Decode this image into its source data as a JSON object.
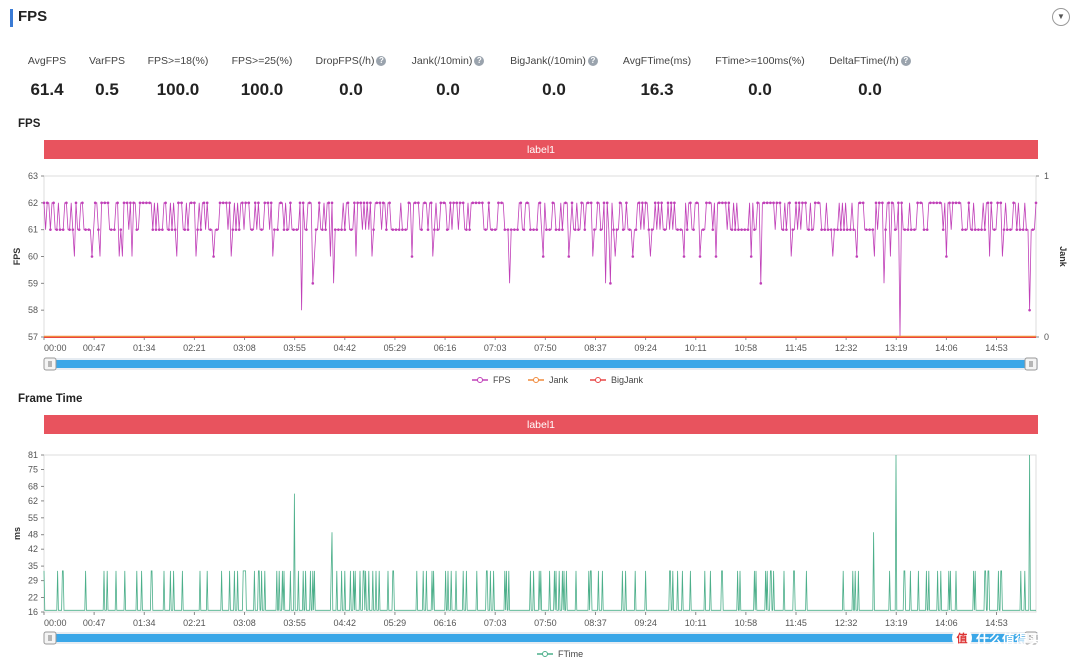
{
  "page": {
    "title": "FPS"
  },
  "stats": [
    {
      "label": "AvgFPS",
      "value": "61.4",
      "help": false
    },
    {
      "label": "VarFPS",
      "value": "0.5",
      "help": false
    },
    {
      "label": "FPS>=18(%)",
      "value": "100.0",
      "help": false
    },
    {
      "label": "FPS>=25(%)",
      "value": "100.0",
      "help": false
    },
    {
      "label": "DropFPS(/h)",
      "value": "0.0",
      "help": true
    },
    {
      "label": "Jank(/10min)",
      "value": "0.0",
      "help": true
    },
    {
      "label": "BigJank(/10min)",
      "value": "0.0",
      "help": true
    },
    {
      "label": "AvgFTime(ms)",
      "value": "16.3",
      "help": false
    },
    {
      "label": "FTime>=100ms(%)",
      "value": "0.0",
      "help": false
    },
    {
      "label": "DeltaFTime(/h)",
      "value": "0.0",
      "help": true
    }
  ],
  "fps_section": {
    "title": "FPS",
    "band_label": "label1"
  },
  "ftime_section": {
    "title": "Frame Time",
    "band_label": "label1"
  },
  "watermark": {
    "text": "什么值得买",
    "badge": "值"
  },
  "colors": {
    "fps": "#c040b8",
    "jank": "#f08a3c",
    "bigjank": "#e84545",
    "ftime": "#4caf8a",
    "band": "#e8535e",
    "slider": "#3aa7e8"
  },
  "chart_data": [
    {
      "type": "line",
      "title": "FPS",
      "ylabel": "FPS",
      "y2label": "Jank",
      "ylim": [
        57,
        63
      ],
      "yticks": [
        57,
        58,
        59,
        60,
        61,
        62,
        63
      ],
      "y2lim": [
        0,
        1
      ],
      "y2ticks": [
        0,
        1
      ],
      "xlim": [
        "00:00",
        "15:30"
      ],
      "xticks": [
        "00:00",
        "00:47",
        "01:34",
        "02:21",
        "03:08",
        "03:55",
        "04:42",
        "05:29",
        "06:16",
        "07:03",
        "07:50",
        "08:37",
        "09:24",
        "10:11",
        "10:58",
        "11:45",
        "12:32",
        "13:19",
        "14:06",
        "14:53"
      ],
      "legend": [
        "FPS",
        "Jank",
        "BigJank"
      ],
      "legend_position": "bottom-center",
      "series": [
        {
          "name": "FPS",
          "baseline": [
            61,
            62
          ],
          "dips": [
            [
              "00:29",
              60
            ],
            [
              "00:45",
              60
            ],
            [
              "00:52",
              60
            ],
            [
              "01:10",
              60
            ],
            [
              "01:14",
              60
            ],
            [
              "01:23",
              60
            ],
            [
              "02:05",
              60
            ],
            [
              "02:23",
              60
            ],
            [
              "02:39",
              60
            ],
            [
              "02:56",
              60
            ],
            [
              "03:35",
              60
            ],
            [
              "04:02",
              58
            ],
            [
              "04:12",
              59
            ],
            [
              "04:14",
              60
            ],
            [
              "04:28",
              60
            ],
            [
              "04:32",
              59
            ],
            [
              "04:53",
              60
            ],
            [
              "05:08",
              60
            ],
            [
              "05:45",
              60
            ],
            [
              "06:05",
              60
            ],
            [
              "07:17",
              59
            ],
            [
              "07:48",
              60
            ],
            [
              "08:12",
              60
            ],
            [
              "08:35",
              60
            ],
            [
              "08:46",
              59
            ],
            [
              "08:51",
              59
            ],
            [
              "08:55",
              60
            ],
            [
              "09:12",
              60
            ],
            [
              "09:28",
              60
            ],
            [
              "10:00",
              60
            ],
            [
              "10:15",
              60
            ],
            [
              "10:30",
              60
            ],
            [
              "11:03",
              60
            ],
            [
              "11:12",
              59
            ],
            [
              "11:40",
              60
            ],
            [
              "12:20",
              60
            ],
            [
              "12:42",
              60
            ],
            [
              "12:58",
              60
            ],
            [
              "13:08",
              59
            ],
            [
              "13:13",
              60
            ],
            [
              "13:22",
              57
            ],
            [
              "14:06",
              60
            ],
            [
              "14:46",
              60
            ],
            [
              "14:59",
              60
            ],
            [
              "15:24",
              58
            ]
          ]
        },
        {
          "name": "Jank",
          "values_constant": 0
        },
        {
          "name": "BigJank",
          "values_constant": 0
        }
      ]
    },
    {
      "type": "line",
      "title": "Frame Time",
      "ylabel": "ms",
      "ylim": [
        16,
        81
      ],
      "yticks": [
        16,
        22,
        29,
        35,
        42,
        48,
        55,
        62,
        68,
        75,
        81
      ],
      "xlim": [
        "00:00",
        "15:30"
      ],
      "xticks": [
        "00:00",
        "00:47",
        "01:34",
        "02:21",
        "03:08",
        "03:55",
        "04:42",
        "05:29",
        "06:16",
        "07:03",
        "07:50",
        "08:37",
        "09:24",
        "10:11",
        "10:58",
        "11:45",
        "12:32",
        "13:19",
        "14:06",
        "14:53"
      ],
      "legend": [
        "FTime"
      ],
      "legend_position": "bottom-center",
      "series": [
        {
          "name": "FTime",
          "baseline": 16.7,
          "spike_level": 33,
          "spikes": [
            [
              "03:55",
              65
            ],
            [
              "04:30",
              49
            ],
            [
              "12:58",
              49
            ],
            [
              "13:19",
              81
            ],
            [
              "15:24",
              81
            ]
          ]
        }
      ]
    }
  ]
}
